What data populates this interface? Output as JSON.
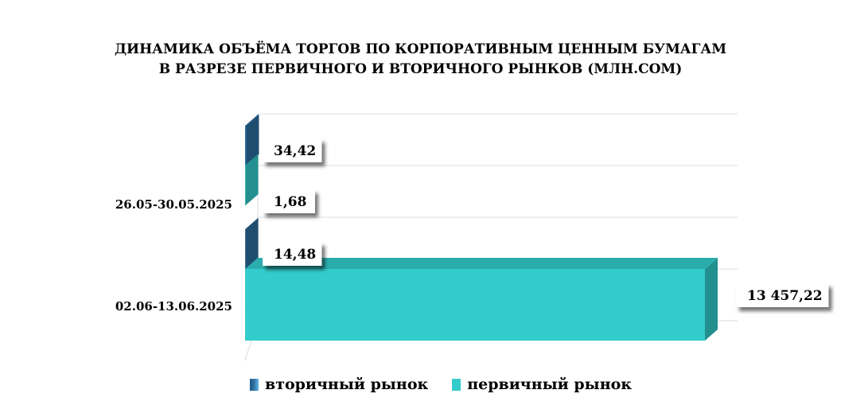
{
  "chart_data": {
    "type": "bar",
    "orientation": "horizontal",
    "title": "ДИНАМИКА ОБЪЁМА ТОРГОВ ПО КОРПОРАТИВНЫМ ЦЕННЫМ БУМАГАМ В РАЗРЕЗЕ ПЕРВИЧНОГО И ВТОРИЧНОГО РЫНКОВ  (МЛН.СОМ)",
    "title_lines": [
      "ДИНАМИКА ОБЪЁМА ТОРГОВ ПО КОРПОРАТИВНЫМ ЦЕННЫМ БУМАГАМ",
      "В РАЗРЕЗЕ ПЕРВИЧНОГО И ВТОРИЧНОГО РЫНКОВ  (МЛН.СОМ)"
    ],
    "categories": [
      "26.05-30.05.2025",
      "02.06-13.06.2025"
    ],
    "series": [
      {
        "name": "вторичный рынок",
        "values": [
          34.42,
          14.48
        ],
        "labels": [
          "34,42",
          "14,48"
        ],
        "color": "#2E6FA0"
      },
      {
        "name": "первичный рынок",
        "values": [
          1.68,
          13457.22
        ],
        "labels": [
          "1,68",
          "13 457,22"
        ],
        "color": "#33CCCC"
      }
    ],
    "xlim": [
      0,
      13457.22
    ],
    "grid": true,
    "legend_position": "bottom",
    "style": "3d"
  }
}
